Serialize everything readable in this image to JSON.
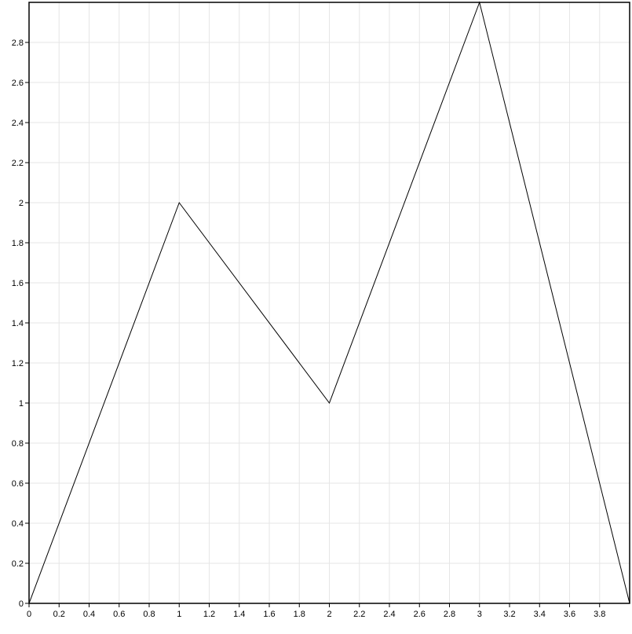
{
  "chart_data": {
    "type": "line",
    "title": "",
    "xlabel": "",
    "ylabel": "",
    "xlim": [
      0,
      4
    ],
    "ylim": [
      0,
      3
    ],
    "grid": true,
    "legend": "none",
    "x_ticks": [
      "0",
      "0.2",
      "0.4",
      "0.6",
      "0.8",
      "1",
      "1.2",
      "1.4",
      "1.6",
      "1.8",
      "2",
      "2.2",
      "2.4",
      "2.6",
      "2.8",
      "3",
      "3.2",
      "3.4",
      "3.6",
      "3.8"
    ],
    "y_ticks": [
      "0",
      "0.2",
      "0.4",
      "0.6",
      "0.8",
      "1",
      "1.2",
      "1.4",
      "1.6",
      "1.8",
      "2",
      "2.2",
      "2.4",
      "2.6",
      "2.8"
    ],
    "series": [
      {
        "color": "#000000",
        "x": [
          0,
          1,
          2,
          3,
          4
        ],
        "y": [
          0,
          2,
          1,
          3,
          0
        ]
      }
    ]
  }
}
